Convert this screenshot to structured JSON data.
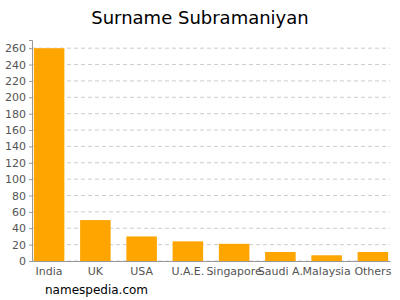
{
  "chart_data": {
    "type": "bar",
    "title": "Surname Subramaniyan",
    "categories": [
      "India",
      "UK",
      "USA",
      "U.A.E.",
      "Singapore",
      "Saudi A.",
      "Malaysia",
      "Others"
    ],
    "values": [
      260,
      50,
      30,
      24,
      21,
      11,
      7,
      11
    ],
    "color": "#ffa500",
    "ylim": [
      0,
      270
    ],
    "yticks": [
      0,
      20,
      40,
      60,
      80,
      100,
      120,
      140,
      160,
      180,
      200,
      220,
      240,
      260
    ],
    "grid": true,
    "source": "namespedia.com"
  }
}
